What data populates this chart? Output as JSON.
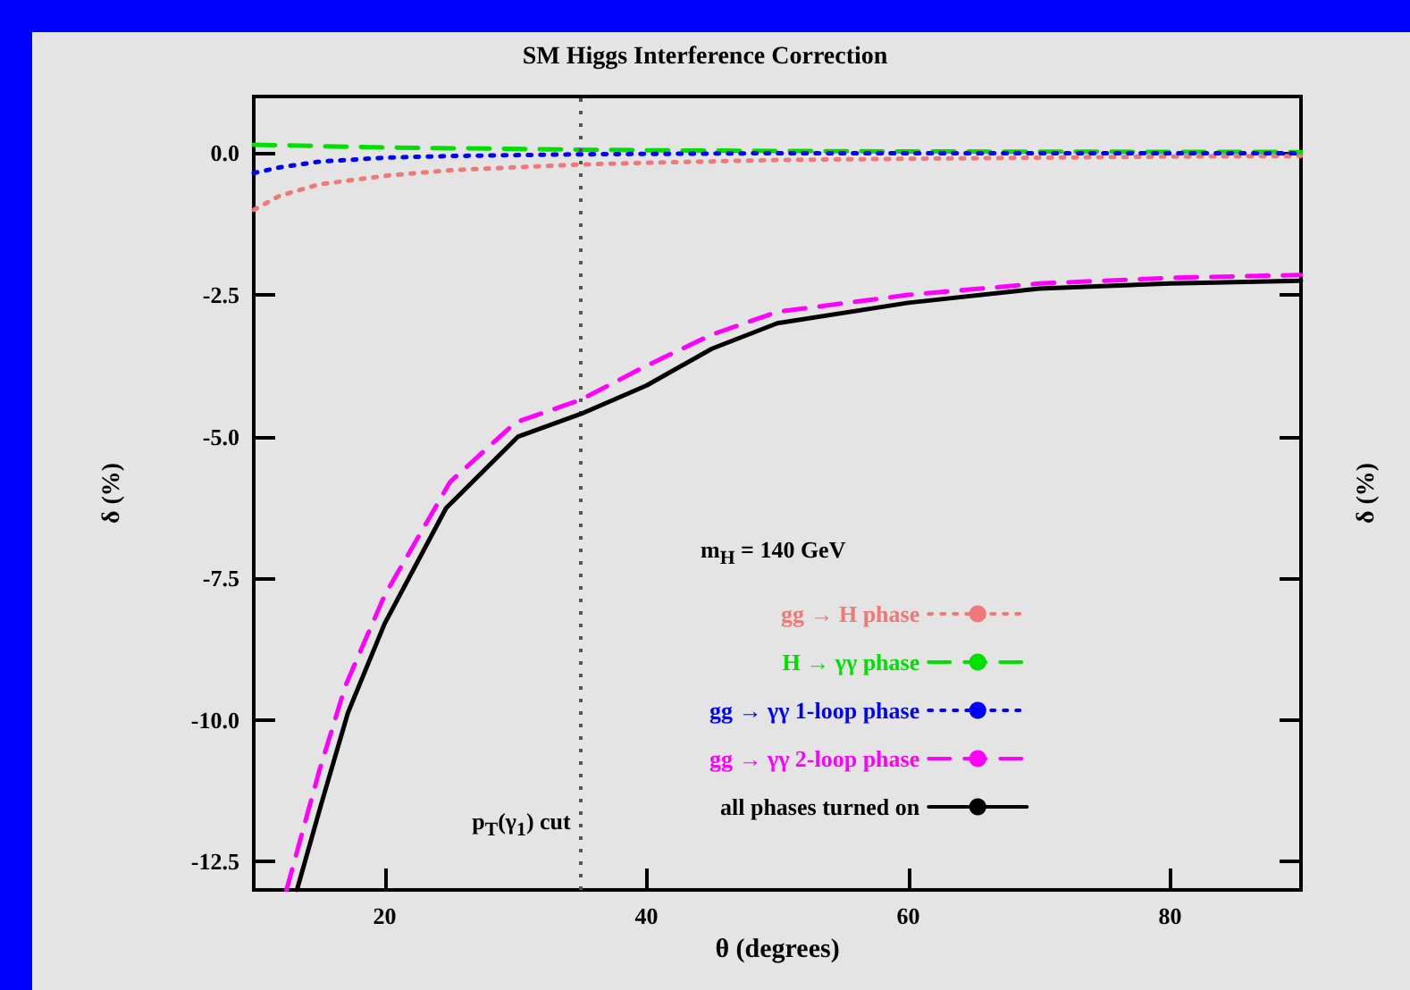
{
  "chart_data": {
    "type": "line",
    "title": "SM Higgs Interference Correction",
    "xlabel": "θ (degrees)",
    "ylabel": "δ (%)",
    "y2label": "δ (%)",
    "legend_title": "m$_{H}$ = 140 GeV",
    "legend": "bottom right",
    "grid": false,
    "marker": "none",
    "xlim": [
      10,
      90
    ],
    "xticks": [
      20,
      40,
      60,
      80
    ],
    "ylim": [
      -13,
      1
    ],
    "yticks": [
      {
        "value": 0,
        "label": "0.0"
      },
      -2.5,
      {
        "value": -5,
        "label": "-5.0"
      },
      -7.5,
      {
        "value": -10,
        "label": "-10.0"
      },
      -12.5
    ],
    "ref_lines": [
      {
        "axis": "x",
        "value": 35,
        "label": "p$_{T}$(γ$_{1}$) cut",
        "color": "#555555",
        "line_style": "dotted"
      }
    ],
    "series": [
      {
        "name": "gg → H phase",
        "color": "#f07878",
        "line_style": "dotted",
        "x": [
          10,
          12,
          15,
          20,
          25,
          30,
          35,
          40,
          50,
          60,
          70,
          80,
          90
        ],
        "values": [
          -1.0,
          -0.75,
          -0.55,
          -0.4,
          -0.3,
          -0.25,
          -0.2,
          -0.17,
          -0.12,
          -0.1,
          -0.08,
          -0.06,
          -0.05
        ]
      },
      {
        "name": "H → γγ phase",
        "color": "#00e000",
        "line_style": "dashed",
        "x": [
          10,
          20,
          40,
          60,
          90
        ],
        "values": [
          0.15,
          0.1,
          0.05,
          0.03,
          0.02
        ]
      },
      {
        "name": "gg → γγ 1-loop phase",
        "color": "#0000ff",
        "line_style": "dotted",
        "x": [
          10,
          12,
          15,
          20,
          25,
          35,
          50,
          90
        ],
        "values": [
          -0.35,
          -0.25,
          -0.15,
          -0.08,
          -0.05,
          -0.02,
          0,
          0
        ]
      },
      {
        "name": "gg → γγ 2-loop phase",
        "color": "#ff00ff",
        "line_style": "dashed",
        "x": [
          12.5,
          15,
          17,
          20,
          25,
          30,
          35,
          40,
          45,
          50,
          60,
          70,
          80,
          90
        ],
        "values": [
          -13,
          -10.9,
          -9.4,
          -7.8,
          -5.8,
          -4.75,
          -4.35,
          -3.75,
          -3.2,
          -2.8,
          -2.5,
          -2.3,
          -2.2,
          -2.15
        ]
      },
      {
        "name": "all phases turned on",
        "color": "#000000",
        "line_style": "solid",
        "x": [
          13.3,
          15.2,
          17.2,
          20,
          24.7,
          30.2,
          35,
          40,
          45,
          50,
          60,
          70,
          80,
          90
        ],
        "values": [
          -13,
          -11.45,
          -9.87,
          -8.3,
          -6.26,
          -5.0,
          -4.6,
          -4.1,
          -3.45,
          -3.0,
          -2.64,
          -2.39,
          -2.3,
          -2.25
        ]
      }
    ]
  }
}
